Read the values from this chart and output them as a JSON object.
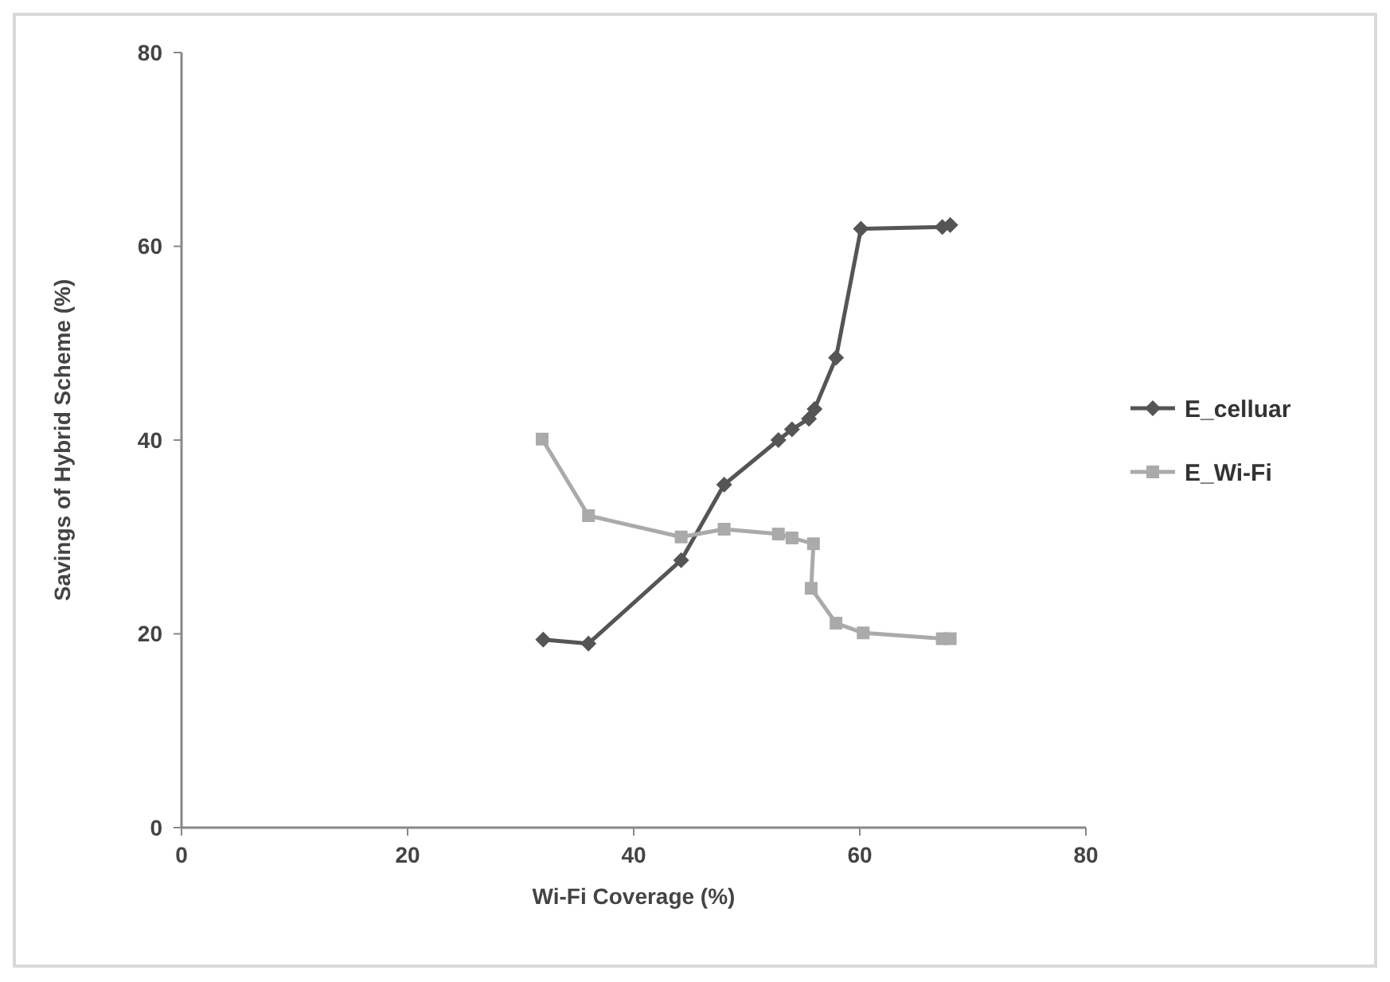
{
  "chart_data": {
    "type": "line",
    "xlabel": "Wi-Fi Coverage (%)",
    "ylabel": "Savings of Hybrid Scheme (%)",
    "xlim": [
      0,
      80
    ],
    "xticks": [
      0,
      20,
      40,
      60,
      80
    ],
    "ylim": [
      0,
      80
    ],
    "yticks": [
      0,
      20,
      40,
      60,
      80
    ],
    "grid": false,
    "legend": "right",
    "series": [
      {
        "name": "E_celluar",
        "color": "#555555",
        "marker": "diamond",
        "x": [
          32.0,
          36.0,
          44.2,
          48.0,
          52.8,
          54.0,
          55.5,
          56.0,
          57.9,
          60.1,
          67.3,
          68.0
        ],
        "values": [
          19.4,
          19.0,
          27.6,
          35.4,
          40.0,
          41.1,
          42.2,
          43.2,
          48.5,
          61.8,
          62.0,
          62.2
        ]
      },
      {
        "name": "E_Wi-Fi",
        "color": "#aaaaaa",
        "marker": "square",
        "x": [
          31.9,
          36.0,
          44.2,
          48.0,
          52.8,
          54.0,
          55.9,
          55.7,
          57.9,
          60.3,
          67.3,
          68.0
        ],
        "values": [
          40.1,
          32.2,
          30.0,
          30.8,
          30.3,
          29.9,
          29.3,
          24.7,
          21.1,
          20.1,
          19.5,
          19.5
        ]
      }
    ]
  }
}
